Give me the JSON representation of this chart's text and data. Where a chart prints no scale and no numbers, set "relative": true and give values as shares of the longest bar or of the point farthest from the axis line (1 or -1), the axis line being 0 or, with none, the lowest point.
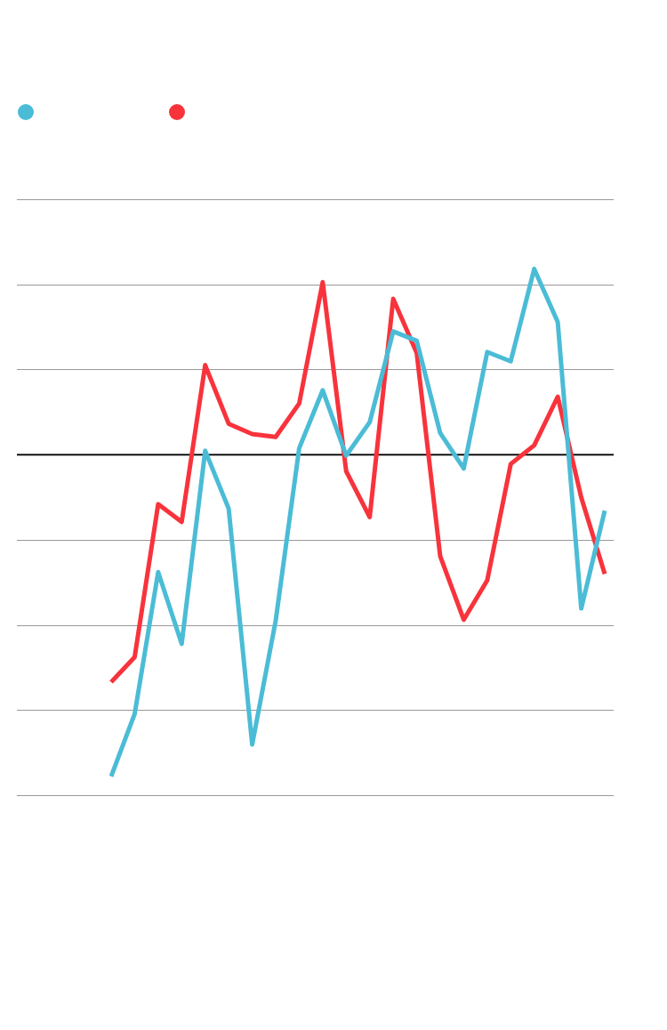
{
  "chart_data": {
    "type": "line",
    "relative": true,
    "grid": "y",
    "marker": "none",
    "line_style": "solid",
    "categories": [
      null,
      null,
      null,
      null,
      null,
      null,
      null,
      null,
      null,
      null,
      null,
      null,
      null,
      null,
      null,
      null,
      null,
      null,
      null,
      null,
      null,
      null
    ],
    "series": [
      {
        "color": "#4bbcd6",
        "values": [
          -1,
          -0.806,
          -0.365,
          -0.588,
          0.012,
          -0.168,
          -0.901,
          -0.516,
          0.02,
          0.2,
          -0.003,
          0.101,
          0.383,
          0.354,
          0.067,
          -0.043,
          0.319,
          0.29,
          0.577,
          0.412,
          -0.478,
          -0.174
        ]
      },
      {
        "color": "#f8333c",
        "values": [
          -0.707,
          -0.629,
          -0.154,
          -0.209,
          0.278,
          0.096,
          0.064,
          0.055,
          0.159,
          0.536,
          -0.052,
          -0.194,
          0.484,
          0.316,
          -0.316,
          -0.513,
          -0.391,
          -0.029,
          0.029,
          0.18,
          -0.133,
          -0.371
        ]
      }
    ]
  }
}
